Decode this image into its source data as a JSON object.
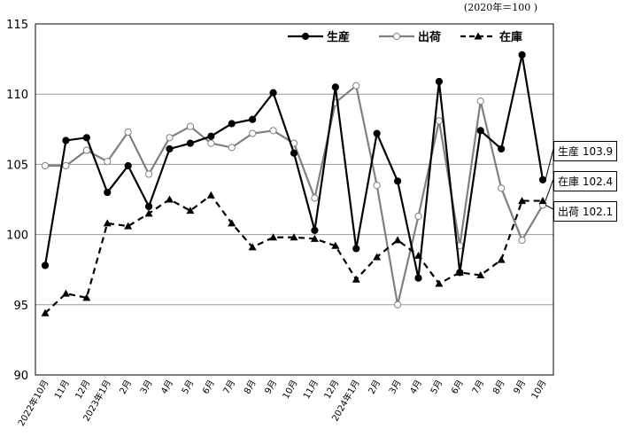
{
  "unit_note": "(2020年＝100 )",
  "colors": {
    "production": "#000000",
    "shipments": "#808080",
    "inventory": "#000000",
    "grid": "#999999"
  },
  "chart_data": {
    "type": "line",
    "unit": "(2020年＝100 )",
    "categories": [
      "2022年10月",
      "11月",
      "12月",
      "2023年1月",
      "2月",
      "3月",
      "4月",
      "5月",
      "6月",
      "7月",
      "8月",
      "9月",
      "10月",
      "11月",
      "12月",
      "2024年1月",
      "2月",
      "3月",
      "4月",
      "5月",
      "6月",
      "7月",
      "8月",
      "9月",
      "10月"
    ],
    "ylim": [
      90,
      115
    ],
    "yticks": [
      90,
      95,
      100,
      105,
      110,
      115
    ],
    "grid": true,
    "legend_position": "top-right",
    "series": [
      {
        "name": "生産",
        "style": "solid-black-filled-circle",
        "values": [
          97.8,
          106.7,
          106.9,
          103.0,
          104.9,
          102.0,
          106.1,
          106.5,
          107.0,
          107.9,
          108.2,
          110.1,
          105.8,
          100.3,
          110.5,
          99.0,
          107.2,
          103.8,
          96.9,
          110.9,
          97.3,
          107.4,
          106.1,
          112.8,
          103.9
        ]
      },
      {
        "name": "出荷",
        "style": "solid-gray-open-circle",
        "values": [
          104.9,
          104.9,
          106.0,
          105.2,
          107.3,
          104.3,
          106.9,
          107.7,
          106.5,
          106.2,
          107.2,
          107.4,
          106.5,
          102.6,
          109.4,
          110.6,
          103.5,
          95.0,
          101.3,
          108.1,
          99.2,
          109.5,
          103.3,
          99.6,
          102.1
        ]
      },
      {
        "name": "在庫",
        "style": "dashed-black-filled-triangle",
        "values": [
          94.4,
          95.8,
          95.5,
          100.8,
          100.6,
          101.5,
          102.5,
          101.7,
          102.8,
          100.8,
          99.1,
          99.8,
          99.8,
          99.7,
          99.2,
          96.8,
          98.4,
          99.6,
          98.5,
          96.5,
          97.3,
          97.1,
          98.2,
          102.4,
          102.4
        ]
      }
    ],
    "callouts": [
      {
        "label": "生産 103.9"
      },
      {
        "label": "在庫 102.4"
      },
      {
        "label": "出荷 102.1"
      }
    ]
  }
}
